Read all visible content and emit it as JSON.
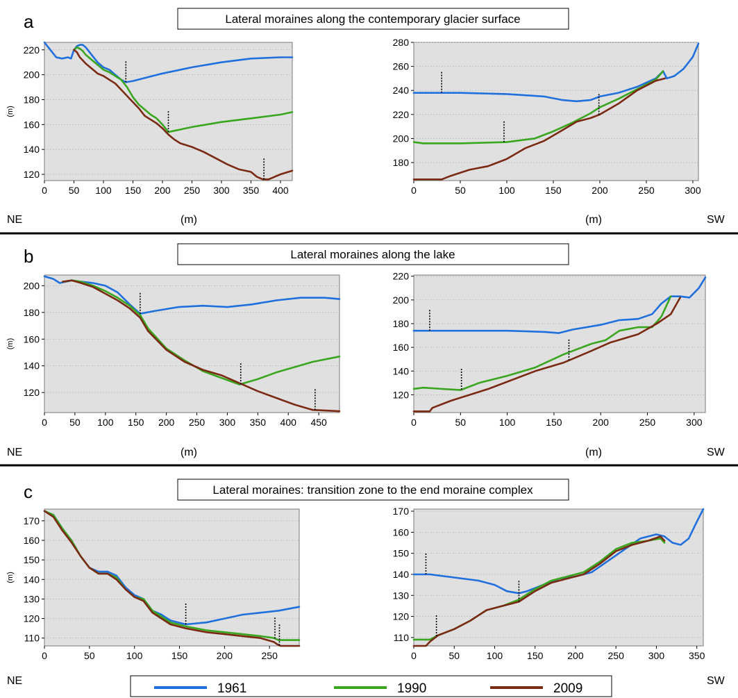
{
  "colors": {
    "series_1961": "#1f6fdc",
    "series_1990": "#3aa51e",
    "series_2009": "#7a2a12",
    "plot_bg": "#e0e0e0",
    "gridline": "#bdbdbd"
  },
  "direction_left": "NE",
  "direction_right": "SW",
  "x_unit": "(m)",
  "y_unit": "(m)",
  "legend": [
    "1961",
    "1990",
    "2009"
  ],
  "panels": [
    {
      "letter": "a",
      "title": "Lateral moraines along the contemporary glacier surface"
    },
    {
      "letter": "b",
      "title": "Lateral moraines along the lake"
    },
    {
      "letter": "c",
      "title": "Lateral moraines: transition zone to the end moraine complex"
    }
  ],
  "chart_data": [
    {
      "type": "line",
      "panel": "a",
      "side": "NE",
      "xlim": [
        0,
        420
      ],
      "ylim": [
        115,
        226
      ],
      "xticks": [
        0,
        50,
        100,
        150,
        200,
        250,
        300,
        350,
        400
      ],
      "yticks": [
        120,
        140,
        160,
        180,
        200,
        220
      ],
      "xlabel": "(m)",
      "ylabel": "(m)",
      "series": [
        {
          "name": "1961",
          "x": [
            0,
            10,
            20,
            30,
            40,
            45,
            50,
            55,
            60,
            65,
            70,
            80,
            90,
            100,
            110,
            120,
            130,
            138,
            150,
            200,
            250,
            300,
            350,
            400,
            420
          ],
          "y": [
            226,
            220,
            214,
            213,
            214,
            213,
            220,
            223,
            224,
            224,
            222,
            216,
            210,
            206,
            204,
            200,
            196,
            194,
            195,
            201,
            206,
            210,
            213,
            214,
            214
          ]
        },
        {
          "name": "1990",
          "x": [
            50,
            55,
            60,
            65,
            70,
            80,
            90,
            100,
            110,
            120,
            130,
            140,
            150,
            160,
            170,
            180,
            190,
            200,
            210,
            220,
            250,
            300,
            350,
            400,
            420
          ],
          "y": [
            220,
            222,
            221,
            219,
            216,
            212,
            208,
            204,
            202,
            199,
            196,
            190,
            182,
            176,
            172,
            168,
            165,
            160,
            154,
            155,
            158,
            162,
            165,
            168,
            170
          ]
        },
        {
          "name": "2009",
          "x": [
            50,
            55,
            60,
            70,
            80,
            90,
            100,
            110,
            120,
            130,
            140,
            150,
            160,
            170,
            180,
            190,
            200,
            210,
            220,
            230,
            250,
            270,
            290,
            310,
            330,
            350,
            360,
            370,
            380,
            400,
            420
          ],
          "y": [
            220,
            218,
            214,
            209,
            205,
            201,
            199,
            196,
            193,
            188,
            183,
            178,
            173,
            167,
            164,
            161,
            157,
            152,
            148,
            145,
            142,
            138,
            133,
            128,
            124,
            122,
            118,
            116,
            116,
            120,
            123
          ]
        }
      ],
      "markers_x": [
        138,
        210,
        372
      ]
    },
    {
      "type": "line",
      "panel": "a",
      "side": "SW",
      "xlim": [
        0,
        306
      ],
      "ylim": [
        165,
        280
      ],
      "xticks": [
        0,
        50,
        100,
        150,
        200,
        250,
        300
      ],
      "yticks": [
        180,
        200,
        220,
        240,
        260,
        280
      ],
      "xlabel": "(m)",
      "ylabel": "",
      "series": [
        {
          "name": "1961",
          "x": [
            0,
            50,
            100,
            140,
            160,
            175,
            190,
            200,
            220,
            240,
            260,
            268,
            272,
            280,
            290,
            300,
            306
          ],
          "y": [
            238,
            238,
            237,
            235,
            232,
            231,
            232,
            235,
            238,
            243,
            250,
            256,
            250,
            252,
            258,
            268,
            279
          ]
        },
        {
          "name": "1990",
          "x": [
            0,
            10,
            30,
            50,
            100,
            130,
            150,
            170,
            190,
            200,
            220,
            240,
            260,
            268
          ],
          "y": [
            197,
            196,
            196,
            196,
            197,
            200,
            206,
            213,
            221,
            226,
            233,
            241,
            249,
            256
          ]
        },
        {
          "name": "2009",
          "x": [
            0,
            20,
            30,
            40,
            60,
            80,
            100,
            120,
            140,
            160,
            175,
            190,
            200,
            220,
            240,
            260,
            270
          ],
          "y": [
            166,
            166,
            166,
            169,
            174,
            177,
            183,
            192,
            198,
            207,
            214,
            217,
            220,
            229,
            240,
            248,
            250
          ]
        }
      ],
      "markers_x": [
        30,
        97,
        199
      ]
    },
    {
      "type": "line",
      "panel": "b",
      "side": "NE",
      "xlim": [
        0,
        484
      ],
      "ylim": [
        105,
        208
      ],
      "xticks": [
        0,
        50,
        100,
        150,
        200,
        250,
        300,
        350,
        400,
        450
      ],
      "yticks": [
        120,
        140,
        160,
        180,
        200
      ],
      "xlabel": "(m)",
      "ylabel": "(m)",
      "series": [
        {
          "name": "1961",
          "x": [
            0,
            15,
            25,
            35,
            45,
            60,
            80,
            100,
            120,
            140,
            157,
            180,
            220,
            260,
            300,
            340,
            380,
            420,
            460,
            484
          ],
          "y": [
            207,
            205,
            202,
            203,
            204,
            203,
            202,
            200,
            195,
            186,
            179,
            181,
            184,
            185,
            184,
            186,
            189,
            191,
            191,
            190
          ]
        },
        {
          "name": "1990",
          "x": [
            30,
            45,
            60,
            80,
            100,
            120,
            140,
            157,
            170,
            200,
            230,
            260,
            290,
            320,
            350,
            380,
            410,
            440,
            484
          ],
          "y": [
            203,
            204,
            203,
            200,
            196,
            191,
            185,
            178,
            168,
            153,
            144,
            136,
            131,
            126,
            130,
            135,
            139,
            143,
            147
          ]
        },
        {
          "name": "2009",
          "x": [
            30,
            45,
            60,
            80,
            100,
            120,
            140,
            157,
            170,
            200,
            230,
            260,
            290,
            320,
            350,
            380,
            410,
            440,
            484
          ],
          "y": [
            203,
            204,
            202,
            199,
            194,
            189,
            183,
            176,
            166,
            152,
            143,
            137,
            133,
            127,
            121,
            116,
            111,
            107,
            106
          ]
        }
      ],
      "markers_x": [
        157,
        322,
        444
      ]
    },
    {
      "type": "line",
      "panel": "b",
      "side": "SW",
      "xlim": [
        0,
        312
      ],
      "ylim": [
        105,
        221
      ],
      "xticks": [
        0,
        50,
        100,
        150,
        200,
        250,
        300
      ],
      "yticks": [
        120,
        140,
        160,
        180,
        200,
        220
      ],
      "xlabel": "(m)",
      "ylabel": "",
      "series": [
        {
          "name": "1961",
          "x": [
            0,
            50,
            100,
            140,
            155,
            170,
            200,
            220,
            240,
            255,
            265,
            275,
            285,
            295,
            305,
            312
          ],
          "y": [
            174,
            174,
            174,
            173,
            172,
            175,
            179,
            183,
            184,
            188,
            197,
            203,
            203,
            202,
            210,
            219
          ]
        },
        {
          "name": "1990",
          "x": [
            0,
            10,
            30,
            50,
            70,
            100,
            130,
            160,
            190,
            205,
            220,
            240,
            255,
            265,
            275
          ],
          "y": [
            125,
            126,
            125,
            124,
            130,
            136,
            143,
            154,
            163,
            166,
            174,
            177,
            177,
            186,
            203
          ]
        },
        {
          "name": "2009",
          "x": [
            0,
            10,
            17,
            20,
            40,
            60,
            80,
            100,
            130,
            160,
            190,
            210,
            240,
            260,
            275,
            285
          ],
          "y": [
            106,
            106,
            106,
            109,
            115,
            120,
            125,
            131,
            140,
            147,
            157,
            164,
            171,
            180,
            188,
            202
          ]
        }
      ],
      "markers_x": [
        17,
        51,
        166
      ]
    },
    {
      "type": "line",
      "panel": "c",
      "side": "NE",
      "xlim": [
        0,
        283
      ],
      "ylim": [
        106,
        176
      ],
      "xticks": [
        0,
        50,
        100,
        150,
        200,
        250
      ],
      "yticks": [
        110,
        120,
        130,
        140,
        150,
        160,
        170
      ],
      "xlabel": "",
      "ylabel": "(m)",
      "series": [
        {
          "name": "1961",
          "x": [
            0,
            10,
            20,
            30,
            40,
            50,
            60,
            70,
            80,
            90,
            100,
            110,
            120,
            130,
            140,
            157,
            180,
            200,
            220,
            240,
            260,
            283
          ],
          "y": [
            175,
            173,
            166,
            160,
            152,
            146,
            144,
            144,
            142,
            136,
            132,
            130,
            124,
            122,
            119,
            117,
            118,
            120,
            122,
            123,
            124,
            126
          ]
        },
        {
          "name": "1990",
          "x": [
            0,
            10,
            20,
            30,
            40,
            50,
            60,
            70,
            80,
            90,
            100,
            110,
            120,
            130,
            140,
            157,
            180,
            200,
            220,
            240,
            255,
            260,
            283
          ],
          "y": [
            175,
            173,
            166,
            160,
            152,
            146,
            143,
            143,
            141,
            135,
            131,
            130,
            124,
            121,
            118,
            116,
            114,
            113,
            112,
            111,
            110,
            109,
            109
          ]
        },
        {
          "name": "2009",
          "x": [
            0,
            10,
            20,
            30,
            40,
            50,
            60,
            70,
            80,
            90,
            100,
            110,
            120,
            130,
            140,
            157,
            180,
            200,
            220,
            240,
            255,
            258,
            262,
            283
          ],
          "y": [
            175,
            172,
            165,
            159,
            152,
            146,
            143,
            143,
            140,
            135,
            131,
            129,
            123,
            120,
            117,
            115,
            113,
            112,
            111,
            110,
            108,
            107,
            106,
            106
          ]
        }
      ],
      "markers_x": [
        157,
        256,
        261
      ]
    },
    {
      "type": "line",
      "panel": "c",
      "side": "SW",
      "xlim": [
        0,
        358
      ],
      "ylim": [
        106,
        171
      ],
      "xticks": [
        0,
        50,
        100,
        150,
        200,
        250,
        300,
        350
      ],
      "yticks": [
        110,
        120,
        130,
        140,
        150,
        160,
        170
      ],
      "xlabel": "",
      "ylabel": "",
      "series": [
        {
          "name": "1961",
          "x": [
            0,
            20,
            40,
            60,
            80,
            100,
            115,
            130,
            140,
            160,
            180,
            200,
            220,
            250,
            280,
            300,
            310,
            320,
            330,
            340,
            350,
            358
          ],
          "y": [
            140,
            140,
            139,
            138,
            137,
            135,
            132,
            131,
            132,
            135,
            138,
            139,
            141,
            149,
            157,
            159,
            158,
            155,
            154,
            157,
            165,
            171
          ]
        },
        {
          "name": "1990",
          "x": [
            0,
            15,
            20,
            30,
            50,
            70,
            90,
            110,
            130,
            150,
            170,
            190,
            210,
            230,
            250,
            270,
            290,
            305,
            310
          ],
          "y": [
            109,
            109,
            109,
            111,
            114,
            118,
            123,
            125,
            128,
            133,
            137,
            139,
            141,
            146,
            152,
            155,
            156,
            157,
            155
          ]
        },
        {
          "name": "2009",
          "x": [
            0,
            15,
            20,
            30,
            50,
            70,
            90,
            110,
            130,
            150,
            170,
            190,
            210,
            230,
            250,
            270,
            290,
            305,
            310
          ],
          "y": [
            106,
            106,
            108,
            111,
            114,
            118,
            123,
            125,
            127,
            132,
            136,
            138,
            140,
            145,
            151,
            154,
            156,
            158,
            156
          ]
        }
      ],
      "markers_x": [
        15,
        28,
        130
      ]
    }
  ]
}
